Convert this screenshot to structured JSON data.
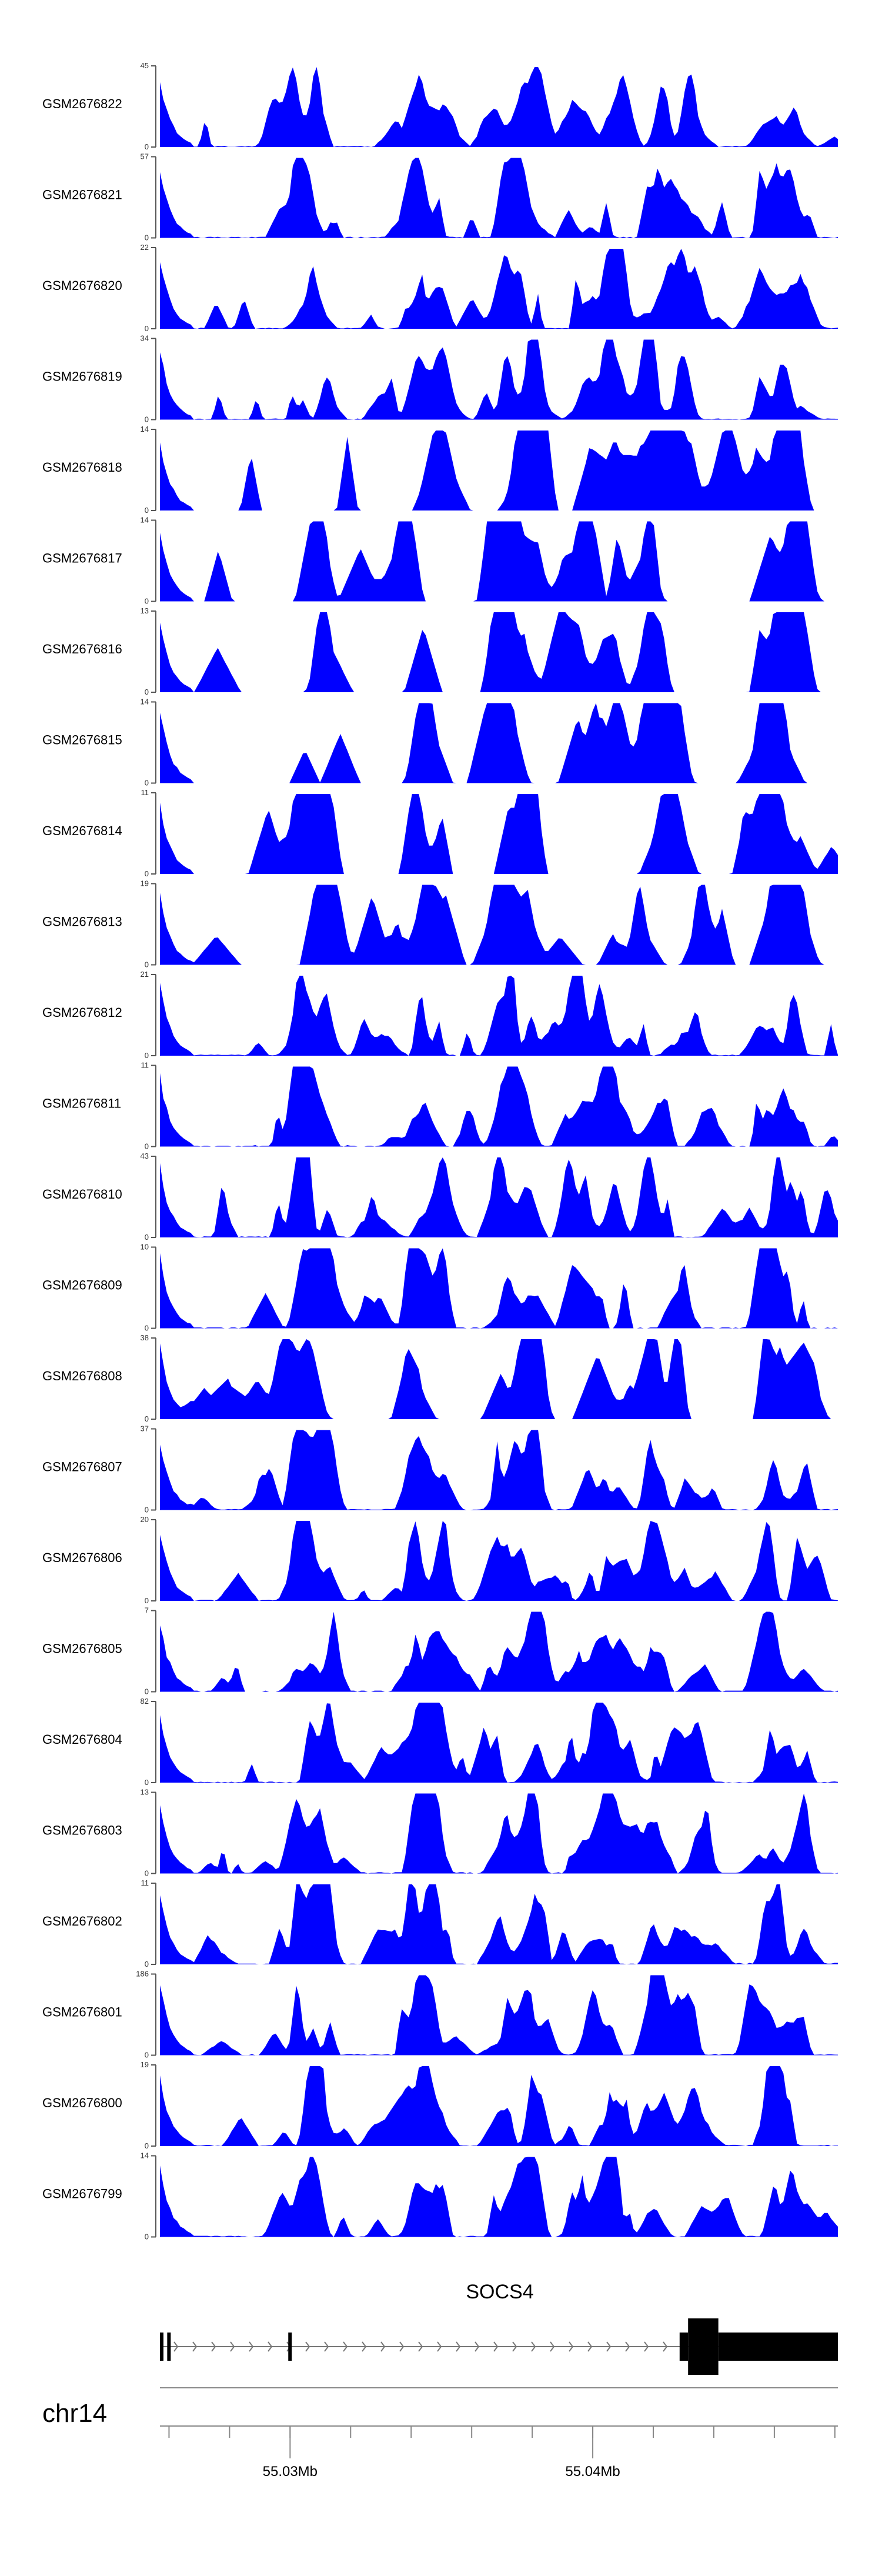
{
  "chart_data": {
    "type": "area",
    "title": "",
    "xlabel": "",
    "ylabel": "",
    "fill_color": "#0000ff",
    "axis_color": "#555555",
    "x_range": [
      55.0257,
      55.0481
    ],
    "tracks": [
      {
        "label": "GSM2676822",
        "ymax": "45",
        "ymin": "0",
        "profile": "busy",
        "peak": 45,
        "values": []
      },
      {
        "label": "GSM2676821",
        "ymax": "57",
        "ymin": "0",
        "profile": "busy",
        "peak": 57,
        "values": []
      },
      {
        "label": "GSM2676820",
        "ymax": "22",
        "ymin": "0",
        "profile": "busy",
        "peak": 22,
        "values": []
      },
      {
        "label": "GSM2676819",
        "ymax": "34",
        "ymin": "0",
        "profile": "busy",
        "peak": 34,
        "values": []
      },
      {
        "label": "GSM2676818",
        "ymax": "14",
        "ymin": "0",
        "profile": "sparse",
        "peak": 14,
        "values": []
      },
      {
        "label": "GSM2676817",
        "ymax": "14",
        "ymin": "0",
        "profile": "sparse",
        "peak": 14,
        "values": []
      },
      {
        "label": "GSM2676816",
        "ymax": "13",
        "ymin": "0",
        "profile": "sparse",
        "peak": 13,
        "values": []
      },
      {
        "label": "GSM2676815",
        "ymax": "14",
        "ymin": "0",
        "profile": "sparse",
        "peak": 14,
        "values": []
      },
      {
        "label": "GSM2676814",
        "ymax": "11",
        "ymin": "0",
        "profile": "sparse",
        "peak": 11,
        "values": []
      },
      {
        "label": "GSM2676813",
        "ymax": "19",
        "ymin": "0",
        "profile": "sparse",
        "peak": 19,
        "values": []
      },
      {
        "label": "GSM2676812",
        "ymax": "21",
        "ymin": "0",
        "profile": "busy",
        "peak": 21,
        "values": []
      },
      {
        "label": "GSM2676811",
        "ymax": "11",
        "ymin": "0",
        "profile": "busy",
        "peak": 11,
        "values": []
      },
      {
        "label": "GSM2676810",
        "ymax": "43",
        "ymin": "0",
        "profile": "busy",
        "peak": 43,
        "values": []
      },
      {
        "label": "GSM2676809",
        "ymax": "10",
        "ymin": "0",
        "profile": "busy",
        "peak": 10,
        "values": []
      },
      {
        "label": "GSM2676808",
        "ymax": "38",
        "ymin": "0",
        "profile": "sparse",
        "peak": 38,
        "values": []
      },
      {
        "label": "GSM2676807",
        "ymax": "37",
        "ymin": "0",
        "profile": "busy",
        "peak": 37,
        "values": []
      },
      {
        "label": "GSM2676806",
        "ymax": "20",
        "ymin": "0",
        "profile": "busy",
        "peak": 20,
        "values": []
      },
      {
        "label": "GSM2676805",
        "ymax": "7",
        "ymin": "0",
        "profile": "busy",
        "peak": 7,
        "values": []
      },
      {
        "label": "GSM2676804",
        "ymax": "82",
        "ymin": "0",
        "profile": "busy",
        "peak": 82,
        "values": []
      },
      {
        "label": "GSM2676803",
        "ymax": "13",
        "ymin": "0",
        "profile": "busy",
        "peak": 13,
        "values": []
      },
      {
        "label": "GSM2676802",
        "ymax": "11",
        "ymin": "0",
        "profile": "busy",
        "peak": 11,
        "values": []
      },
      {
        "label": "GSM2676801",
        "ymax": "186",
        "ymin": "0",
        "profile": "busy",
        "peak": 186,
        "values": []
      },
      {
        "label": "GSM2676800",
        "ymax": "19",
        "ymin": "0",
        "profile": "busy",
        "peak": 19,
        "values": []
      },
      {
        "label": "GSM2676799",
        "ymax": "14",
        "ymin": "0",
        "profile": "busy",
        "peak": 14,
        "values": []
      }
    ],
    "gene": {
      "name": "SOCS4",
      "strand": "+",
      "exons": [
        {
          "start": 55.0257,
          "end": 55.02574,
          "type": "utr"
        },
        {
          "start": 55.02594,
          "end": 55.02604,
          "type": "utr"
        },
        {
          "start": 55.02994,
          "end": 55.03004,
          "type": "utr"
        },
        {
          "start": 55.04287,
          "end": 55.04315,
          "type": "utr"
        },
        {
          "start": 55.04315,
          "end": 55.04415,
          "type": "cds"
        },
        {
          "start": 55.04415,
          "end": 55.0481,
          "type": "utr"
        }
      ]
    },
    "chromosome": "chr14",
    "axis_ticks": [
      {
        "pos": 55.03,
        "label": "55.03Mb"
      },
      {
        "pos": 55.04,
        "label": "55.04Mb"
      }
    ],
    "minor_tick_step": 0.002
  }
}
